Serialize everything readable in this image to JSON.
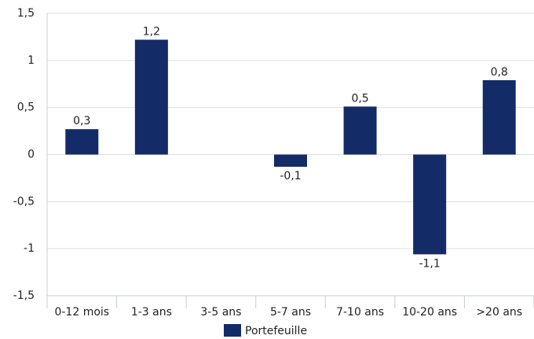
{
  "chart_data": {
    "type": "bar",
    "categories": [
      "0-12 mois",
      "1-3 ans",
      "3-5 ans",
      "5-7 ans",
      "7-10 ans",
      "10-20 ans",
      ">20 ans"
    ],
    "series": [
      {
        "name": "Portefeuille",
        "color": "#132b66",
        "values": [
          0.27,
          1.22,
          0,
          -0.13,
          0.51,
          -1.06,
          0.79
        ],
        "value_labels": [
          "0,3",
          "1,2",
          null,
          "-0,1",
          "0,5",
          "-1,1",
          "0,8"
        ]
      }
    ],
    "ylim": [
      -1.5,
      1.5
    ],
    "yticks": [
      {
        "value": -1.5,
        "label": "-1,5"
      },
      -1,
      {
        "value": -0.5,
        "label": "-0,5"
      },
      0,
      {
        "value": 0.5,
        "label": "0,5"
      },
      1,
      {
        "value": 1.5,
        "label": "1,5"
      }
    ],
    "grid": true,
    "legend": "bottom"
  }
}
